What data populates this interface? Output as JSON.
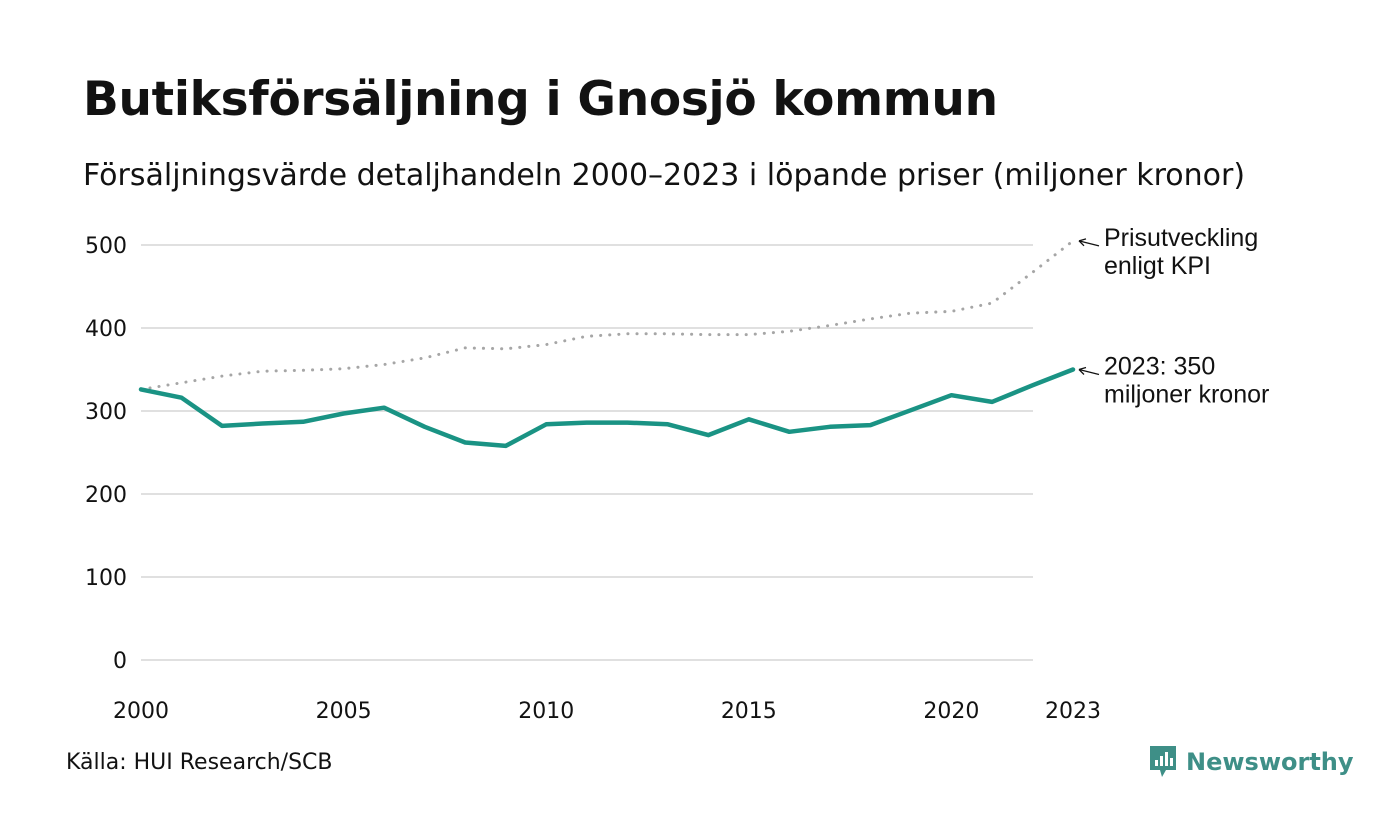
{
  "title": "Butiksförsäljning i Gnosjö kommun",
  "subtitle": "Försäljningsvärde detaljhandeln 2000–2023 i löpande priser (miljoner kronor)",
  "source": "Källa: HUI Research/SCB",
  "brand": {
    "name": "Newsworthy",
    "icon": "newsworthy-logo-icon",
    "color": "#3e8f87"
  },
  "chart_data": {
    "type": "line",
    "title": "Butiksförsäljning i Gnosjö kommun",
    "xlabel": "",
    "ylabel": "",
    "x": [
      2000,
      2001,
      2002,
      2003,
      2004,
      2005,
      2006,
      2007,
      2008,
      2009,
      2010,
      2011,
      2012,
      2013,
      2014,
      2015,
      2016,
      2017,
      2018,
      2019,
      2020,
      2021,
      2022,
      2023
    ],
    "xlim": [
      2000,
      2023
    ],
    "ylim": [
      0,
      500
    ],
    "x_ticks": [
      2000,
      2005,
      2010,
      2015,
      2020,
      2023
    ],
    "y_ticks": [
      0,
      100,
      200,
      300,
      400,
      500
    ],
    "grid": true,
    "series": [
      {
        "name": "Försäljningsvärde",
        "color": "#1a9384",
        "style": "solid",
        "values": [
          326,
          316,
          282,
          285,
          287,
          297,
          304,
          281,
          262,
          258,
          284,
          286,
          286,
          284,
          271,
          290,
          275,
          281,
          283,
          301,
          319,
          311,
          331,
          350
        ]
      },
      {
        "name": "Prisutveckling enligt KPI",
        "color": "#a6a6a6",
        "style": "dotted",
        "values": [
          326,
          334,
          342,
          348,
          349,
          351,
          356,
          364,
          376,
          375,
          380,
          390,
          393,
          393,
          392,
          392,
          396,
          403,
          411,
          418,
          420,
          430,
          467,
          505
        ]
      }
    ],
    "annotations": [
      {
        "series": 1,
        "lines": [
          "Prisutveckling",
          "enligt KPI"
        ]
      },
      {
        "series": 0,
        "lines": [
          "2023: 350",
          "miljoner kronor"
        ]
      }
    ]
  }
}
